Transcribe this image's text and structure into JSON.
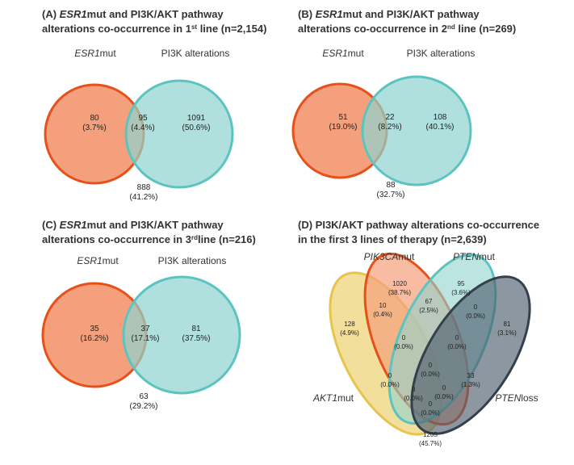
{
  "panels": [
    {
      "title": [
        [
          "(A) ",
          "ESR1",
          "mut and PI3K/AKT pathway"
        ],
        [
          "alterations co-occurrence in 1",
          "st",
          " line (n=2,154)"
        ]
      ],
      "set_labels": [
        [
          "ESR1",
          "mut"
        ],
        [
          "PI3K alterations"
        ]
      ],
      "regions": [
        [
          "80",
          "(3.7%)"
        ],
        [
          "95",
          "(4.4%)"
        ],
        [
          "1091",
          "(50.6%)"
        ],
        [
          "888",
          "(41.2%)"
        ]
      ]
    },
    {
      "title": [
        [
          "(B) ",
          "ESR1",
          "mut and PI3K/AKT pathway"
        ],
        [
          "alterations co-occurrence in 2",
          "nd",
          " line (n=269)"
        ]
      ],
      "set_labels": [
        [
          "ESR1",
          "mut"
        ],
        [
          "PI3K alterations"
        ]
      ],
      "regions": [
        [
          "51",
          "(19.0%)"
        ],
        [
          "22",
          "(8.2%)"
        ],
        [
          "108",
          "(40.1%)"
        ],
        [
          "88",
          "(32.7%)"
        ]
      ]
    },
    {
      "title": [
        [
          "(C) ",
          "ESR1",
          "mut and PI3K/AKT pathway"
        ],
        [
          "alterations co-occurrence in 3",
          "rd",
          "line (n=216)"
        ]
      ],
      "set_labels": [
        [
          "ESR1",
          "mut"
        ],
        [
          "PI3K alterations"
        ]
      ],
      "regions": [
        [
          "35",
          "(16.2%)"
        ],
        [
          "37",
          "(17.1%)"
        ],
        [
          "81",
          "(37.5%)"
        ],
        [
          "63",
          "(29.2%)"
        ]
      ]
    },
    {
      "title": [
        [
          "(D) PI3K/AKT pathway alterations co-occurrence"
        ],
        [
          "in the first 3 lines of therapy (n=2,639)"
        ]
      ],
      "set_labels": [
        [
          "PIK3CA",
          "mut"
        ],
        [
          "PTEN",
          "mut"
        ],
        [
          "AKT1",
          "mut"
        ],
        [
          "PTEN",
          "loss"
        ]
      ],
      "regions": [
        [
          "1020",
          "(38.7%)"
        ],
        [
          "95",
          "(3.6%)"
        ],
        [
          "10",
          "(0.4%)"
        ],
        [
          "67",
          "(2.5%)"
        ],
        [
          "0",
          "(0.0%)"
        ],
        [
          "128",
          "(4.9%)"
        ],
        [
          "81",
          "(3.1%)"
        ],
        [
          "0",
          "(0.0%)"
        ],
        [
          "0",
          "(0.0%)"
        ],
        [
          "0",
          "(0.0%)"
        ],
        [
          "0",
          "(0.0%)"
        ],
        [
          "33",
          "(1.3%)"
        ],
        [
          "0",
          "(0.0%)"
        ],
        [
          "0",
          "(0.0%)"
        ],
        [
          "0",
          "(0.0%)"
        ],
        [
          "1205",
          "(45.7%)"
        ]
      ]
    }
  ]
}
